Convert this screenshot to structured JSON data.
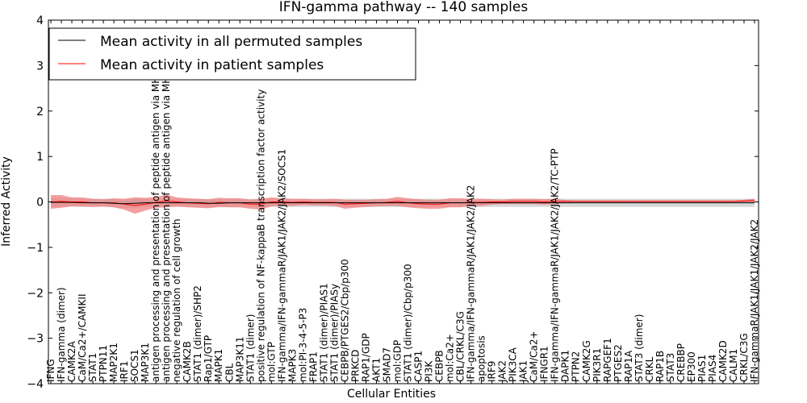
{
  "chart_data": {
    "type": "line",
    "title": "IFN-gamma pathway -- 140 samples",
    "xlabel": "Cellular Entities",
    "ylabel": "Inferred Activity",
    "ylim": [
      -4,
      4
    ],
    "yticks": [
      -4,
      -3,
      -2,
      -1,
      0,
      1,
      2,
      3,
      4
    ],
    "grid": false,
    "legend_position": "top-left",
    "colors": {
      "permuted": "#000000",
      "patient": "#ff0000",
      "permuted_band": "#c8c8c8",
      "patient_band": "#f08080"
    },
    "categories": [
      "IFNG",
      "IFN-gamma (dimer)",
      "CAMK2A",
      "CaM/Ca2+/CAMKII",
      "STAT1",
      "PTPN11",
      "MAP2K1",
      "IRF1",
      "SOCS1",
      "MAP3K1",
      "antigen processing and presentation of peptide antigen via MHC class I",
      "antigen processing and presentation of peptide antigen via MHC class II",
      "negative regulation of cell growth",
      "CAMK2B",
      "STAT1 (dimer)/SHP2",
      "Rap1/GTP",
      "MAPK1",
      "CBL",
      "MAP3K11",
      "STAT1 (dimer)",
      "positive regulation of NF-kappaB transcription factor activity",
      "mol:GTP",
      "IFN-gamma/IFN-gammaR/JAK1/JAK2/JAK2/SOCS1",
      "MAPK3",
      "mol:PI-3-4-5-P3",
      "FRAP1",
      "STAT1 (dimer)/PIAS1",
      "STAT1 (dimer)/PIASy",
      "CEBPB/PTGES2/Cbp/p300",
      "PRKCD",
      "RAP1/GDP",
      "AKT1",
      "SMAD7",
      "mol:GDP",
      "STAT1 (dimer)/Cbp/p300",
      "CASP1",
      "PI3K",
      "CEBPB",
      "mol:Ca2+",
      "CBL/CRKL/C3G",
      "IFN-gamma/IFN-gammaR/JAK1/JAK2/JAK2",
      "apoptosis",
      "IRF9",
      "JAK2",
      "PIK3CA",
      "JAK1",
      "CaM/Ca2+",
      "IFNGR1",
      "IFN-gamma/IFN-gammaR/JAK1/JAK2/JAK2/TC-PTP",
      "DAPK1",
      "PTPN2",
      "CAMK2G",
      "PIK3R1",
      "RAPGEF1",
      "PTGES2",
      "RAP1A",
      "STAT3 (dimer)",
      "CRKL",
      "RAP1B",
      "STAT3",
      "CREBBP",
      "EP300",
      "PIAS1",
      "PIAS4",
      "CAMK2D",
      "CALM1",
      "CRKL/C3G",
      "IFN-gammaR/JAK1/JAK1/JAK2/JAK2"
    ],
    "series": [
      {
        "name": "Mean activity in all permuted samples",
        "values": [
          -0.01,
          -0.01,
          -0.01,
          -0.02,
          -0.02,
          -0.02,
          -0.03,
          -0.04,
          -0.03,
          -0.02,
          -0.02,
          -0.02,
          -0.02,
          -0.02,
          -0.02,
          -0.03,
          -0.03,
          -0.02,
          -0.02,
          -0.02,
          -0.02,
          -0.02,
          -0.02,
          -0.02,
          -0.02,
          -0.02,
          -0.02,
          -0.02,
          -0.02,
          -0.02,
          -0.02,
          -0.02,
          -0.02,
          -0.02,
          -0.02,
          -0.02,
          -0.02,
          -0.02,
          -0.02,
          -0.02,
          -0.02,
          -0.02,
          -0.02,
          -0.02,
          -0.02,
          -0.02,
          -0.02,
          -0.02,
          -0.02,
          -0.02,
          -0.02,
          -0.02,
          -0.02,
          -0.02,
          -0.02,
          -0.02,
          -0.02,
          -0.02,
          -0.02,
          -0.02,
          -0.02,
          -0.02,
          -0.02,
          -0.02,
          -0.02,
          -0.02,
          -0.02,
          -0.02
        ],
        "band": [
          0.1,
          0.1,
          0.09,
          0.09,
          0.09,
          0.09,
          0.09,
          0.1,
          0.1,
          0.09,
          0.09,
          0.09,
          0.09,
          0.09,
          0.09,
          0.09,
          0.09,
          0.09,
          0.09,
          0.09,
          0.09,
          0.09,
          0.09,
          0.09,
          0.09,
          0.09,
          0.09,
          0.09,
          0.09,
          0.09,
          0.09,
          0.09,
          0.09,
          0.09,
          0.09,
          0.09,
          0.09,
          0.09,
          0.09,
          0.09,
          0.09,
          0.09,
          0.09,
          0.09,
          0.09,
          0.09,
          0.09,
          0.09,
          0.09,
          0.09,
          0.09,
          0.09,
          0.09,
          0.09,
          0.09,
          0.09,
          0.09,
          0.09,
          0.09,
          0.09,
          0.09,
          0.09,
          0.09,
          0.09,
          0.09,
          0.09,
          0.09,
          0.09
        ]
      },
      {
        "name": "Mean activity in patient samples",
        "values": [
          0.0,
          0.01,
          0.0,
          0.0,
          -0.02,
          -0.02,
          -0.02,
          -0.05,
          -0.08,
          -0.05,
          -0.01,
          0.02,
          0.0,
          -0.02,
          -0.03,
          -0.04,
          -0.01,
          -0.02,
          -0.02,
          -0.05,
          -0.05,
          0.0,
          0.0,
          -0.01,
          0.0,
          -0.01,
          -0.01,
          -0.01,
          -0.05,
          -0.04,
          -0.03,
          -0.02,
          -0.01,
          0.01,
          -0.02,
          -0.04,
          -0.05,
          -0.05,
          -0.02,
          -0.02,
          -0.01,
          -0.01,
          0.0,
          0.0,
          0.01,
          0.01,
          0.01,
          0.0,
          0.01,
          0.01,
          0.01,
          0.01,
          0.01,
          0.01,
          0.01,
          0.01,
          0.01,
          0.01,
          0.01,
          0.01,
          0.01,
          0.01,
          0.01,
          0.01,
          0.01,
          0.01,
          0.02,
          0.03
        ],
        "band": [
          0.15,
          0.14,
          0.1,
          0.1,
          0.09,
          0.08,
          0.1,
          0.12,
          0.18,
          0.14,
          0.12,
          0.14,
          0.1,
          0.1,
          0.1,
          0.1,
          0.1,
          0.1,
          0.1,
          0.1,
          0.12,
          0.1,
          0.08,
          0.08,
          0.07,
          0.07,
          0.07,
          0.08,
          0.1,
          0.09,
          0.08,
          0.08,
          0.08,
          0.1,
          0.1,
          0.1,
          0.1,
          0.1,
          0.1,
          0.1,
          0.08,
          0.08,
          0.06,
          0.05,
          0.06,
          0.06,
          0.06,
          0.06,
          0.06,
          0.03,
          0.02,
          0.02,
          0.02,
          0.02,
          0.02,
          0.02,
          0.02,
          0.02,
          0.02,
          0.02,
          0.02,
          0.02,
          0.02,
          0.02,
          0.02,
          0.02,
          0.03,
          0.04
        ]
      }
    ]
  }
}
